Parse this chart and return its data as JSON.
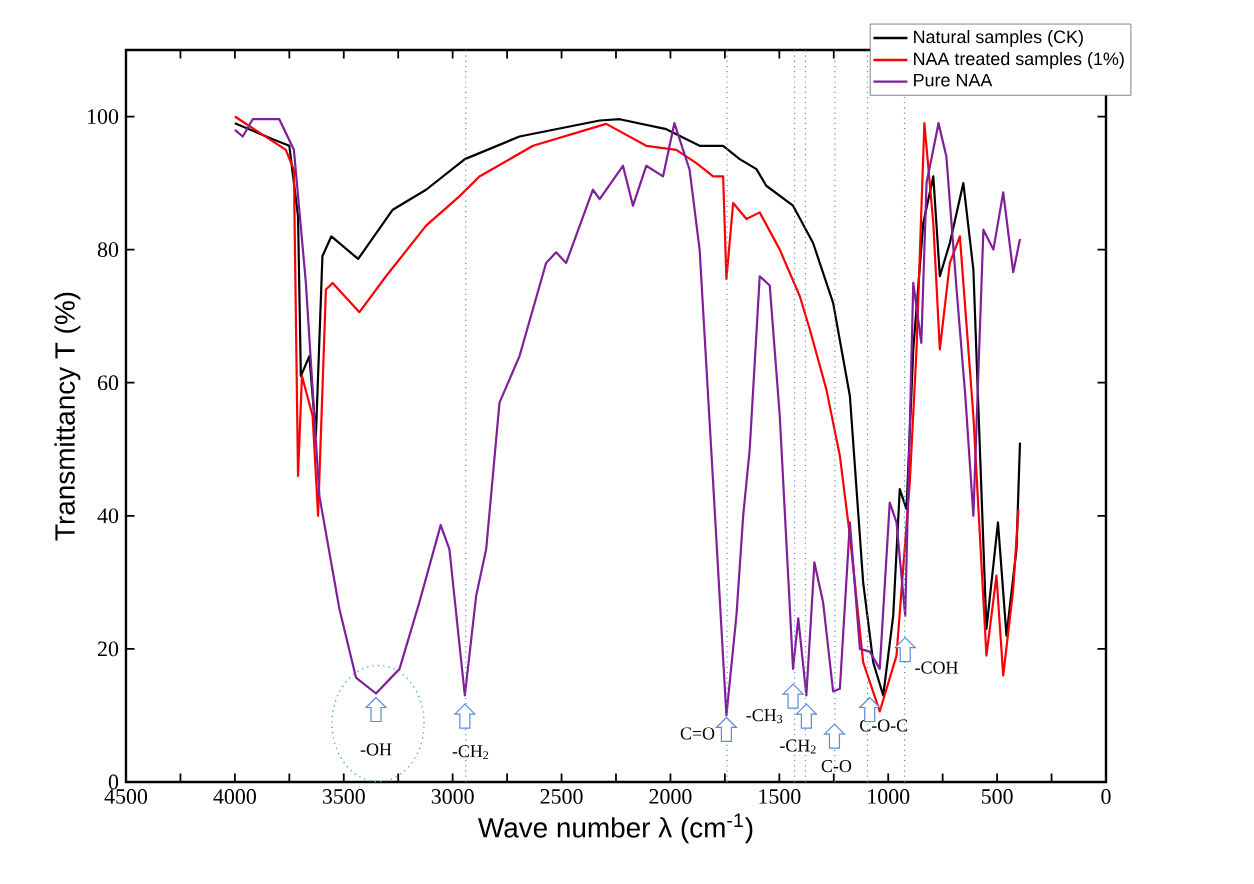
{
  "chart_data": {
    "type": "line",
    "xlabel": "Wave number λ (cm$^{-1}$)",
    "ylabel": "Transmittancy T (%)",
    "xlim": [
      4500,
      0
    ],
    "ylim": [
      0,
      110
    ],
    "xticks": [
      4500,
      {
        "value": 4250,
        "label": null
      },
      4000,
      {
        "value": 3750,
        "label": null
      },
      3500,
      {
        "value": 3250,
        "label": null
      },
      3000,
      {
        "value": 2750,
        "label": null
      },
      2500,
      {
        "value": 2250,
        "label": null
      },
      2000,
      {
        "value": 1750,
        "label": null
      },
      1500,
      {
        "value": 1250,
        "label": null
      },
      1000,
      {
        "value": 750,
        "label": null
      },
      500,
      {
        "value": 250,
        "label": null
      },
      0
    ],
    "yticks": [
      0,
      20,
      40,
      60,
      80,
      100
    ],
    "legend": "top right",
    "marker": "none",
    "line_style": "solid",
    "series": [
      {
        "name": "Natural samples (CK)",
        "color": "#000000",
        "x": [
          4000,
          3826,
          3750,
          3710,
          3697,
          3658,
          3628,
          3598,
          3557,
          3434,
          3275,
          3122,
          2944,
          2693,
          2325,
          2233,
          2019,
          1866,
          1758,
          1682,
          1605,
          1560,
          1437,
          1345,
          1253,
          1176,
          1115,
          1069,
          1023,
          977,
          947,
          916,
          885,
          839,
          793,
          763,
          717,
          655,
          609,
          549,
          496,
          457,
          411,
          395
        ],
        "values": [
          99,
          96.6,
          95.6,
          85,
          61,
          64,
          52,
          79,
          82,
          78.6,
          86,
          89,
          93.6,
          97,
          99.4,
          99.6,
          98.1,
          95.6,
          95.6,
          93.6,
          92.1,
          89.6,
          86.6,
          81,
          72,
          58,
          30,
          18,
          13,
          25,
          44,
          41,
          65,
          84,
          91,
          76,
          81,
          90,
          77,
          23,
          39,
          22,
          35,
          51
        ]
      },
      {
        "name": "NAA treated samples (1%)",
        "color": "#ff0000",
        "x": [
          4000,
          3766,
          3729,
          3710,
          3692,
          3643,
          3618,
          3582,
          3551,
          3428,
          3306,
          3122,
          2969,
          2877,
          2631,
          2295,
          2111,
          1973,
          1881,
          1804,
          1758,
          1743,
          1712,
          1651,
          1590,
          1498,
          1406,
          1360,
          1284,
          1222,
          1176,
          1115,
          1039,
          962,
          901,
          870,
          834,
          793,
          763,
          717,
          671,
          609,
          549,
          503,
          472,
          426,
          402
        ],
        "values": [
          100,
          95,
          92,
          46,
          61,
          55,
          40,
          74,
          75,
          70.6,
          76,
          83.6,
          88,
          91,
          95.6,
          98.9,
          95.6,
          95,
          93,
          91,
          91,
          75.6,
          87,
          84.6,
          85.6,
          80,
          73,
          68,
          59,
          49,
          37,
          18,
          10.6,
          19,
          45,
          65,
          99,
          84,
          65,
          78,
          82,
          55,
          19,
          31,
          16,
          29,
          41
        ]
      },
      {
        "name": "Pure NAA",
        "color": "#7f1f9a",
        "x": [
          4000,
          3964,
          3918,
          3796,
          3729,
          3674,
          3612,
          3520,
          3444,
          3352,
          3244,
          3153,
          3055,
          3015,
          2944,
          2892,
          2846,
          2785,
          2693,
          2571,
          2525,
          2479,
          2356,
          2325,
          2218,
          2172,
          2111,
          2034,
          1982,
          1912,
          1866,
          1804,
          1743,
          1697,
          1666,
          1636,
          1590,
          1544,
          1498,
          1437,
          1413,
          1376,
          1339,
          1299,
          1253,
          1222,
          1176,
          1130,
          1085,
          1039,
          993,
          962,
          922,
          885,
          848,
          824,
          769,
          733,
          686,
          646,
          609,
          563,
          517,
          472,
          426,
          395
        ],
        "values": [
          98,
          97,
          99.6,
          99.6,
          95,
          75,
          43,
          26,
          15.7,
          13.3,
          17,
          27,
          38.6,
          35,
          13,
          28,
          35,
          57,
          64,
          78,
          79.6,
          78,
          89,
          87.6,
          92.6,
          86.6,
          92.6,
          91,
          99,
          92,
          80,
          45,
          10,
          25,
          40,
          50,
          76,
          74.6,
          55,
          17,
          24.6,
          13,
          33,
          27,
          13.6,
          14,
          39,
          20,
          19.6,
          17,
          42,
          39,
          25,
          75,
          66,
          90,
          99,
          94,
          74,
          58,
          40,
          83,
          80,
          88.6,
          76.6,
          81.6
        ]
      }
    ],
    "ref_lines": [
      {
        "axis": "x",
        "value": 2940,
        "color": "#5b8bd9",
        "line_style": "dotted"
      },
      {
        "axis": "x",
        "value": 1740,
        "color": "#5b8bd9",
        "line_style": "dotted"
      },
      {
        "axis": "x",
        "value": 1430,
        "color": "#5b8bd9",
        "line_style": "dotted"
      },
      {
        "axis": "x",
        "value": 1380,
        "color": "#5b8bd9",
        "line_style": "dotted"
      },
      {
        "axis": "x",
        "value": 1245,
        "color": "#5b8bd9",
        "line_style": "dotted"
      },
      {
        "axis": "x",
        "value": 1095,
        "color": "#5b8bd9",
        "line_style": "dotted"
      },
      {
        "axis": "x",
        "value": 925,
        "color": "#5b8bd9",
        "line_style": "dotted"
      }
    ],
    "annotations": [
      {
        "text": "-OH",
        "x": 3352,
        "y": 13
      },
      {
        "text": "-CH$_{2}$",
        "x": 2944,
        "y": 12
      },
      {
        "text": "C=O",
        "x": 1743,
        "y": 10
      },
      {
        "text": "-CH$_{3}$",
        "x": 1437,
        "y": 15
      },
      {
        "text": "-CH$_{2}$",
        "x": 1376,
        "y": 12
      },
      {
        "text": "C-O",
        "x": 1247,
        "y": 9
      },
      {
        "text": "C-O-C",
        "x": 1085,
        "y": 13
      },
      {
        "text": "-COH",
        "x": 922,
        "y": 22
      }
    ]
  }
}
